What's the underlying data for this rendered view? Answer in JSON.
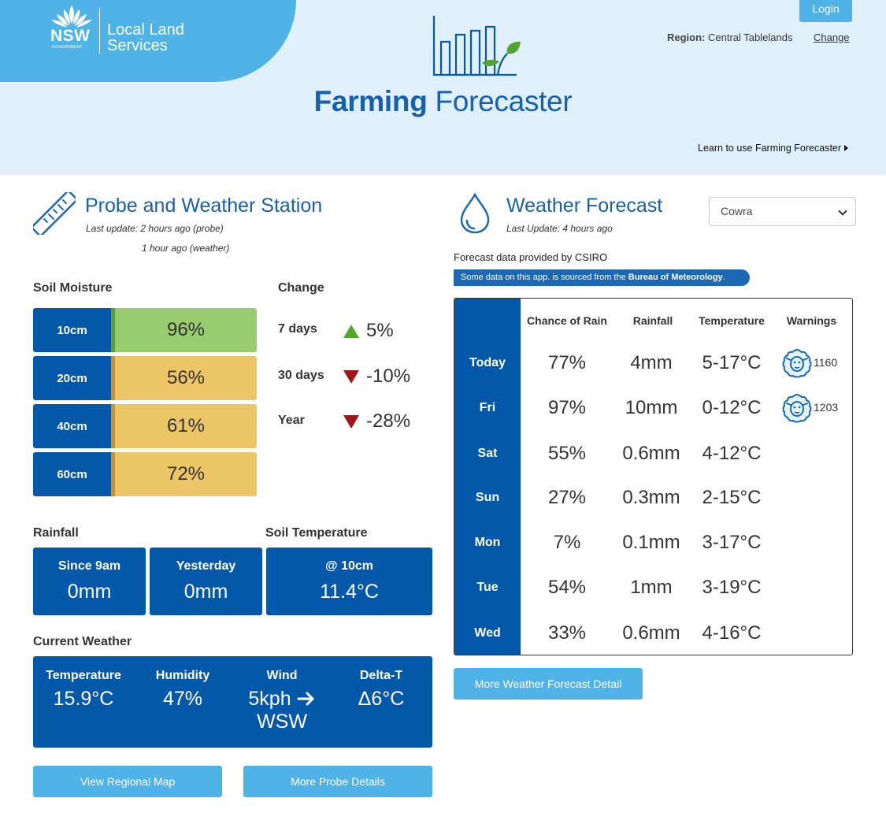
{
  "header": {
    "nsw_logo_text": "NSW",
    "nsw_logo_subtext": "GOVERNMENT",
    "org_line1": "Local Land",
    "org_line2": "Services",
    "app_title_bold": "Farming",
    "app_title_light": "Forecaster",
    "login_label": "Login",
    "region_label": "Region:",
    "region_value": "Central Tablelands",
    "change_label": "Change",
    "learn_label": "Learn to use Farming Forecaster"
  },
  "probe": {
    "title": "Probe and Weather Station",
    "last_update_probe": "Last update: 2 hours ago (probe)",
    "last_update_weather": "1 hour ago (weather)",
    "soil_moisture_heading": "Soil Moisture",
    "change_heading": "Change",
    "soil_moisture": [
      {
        "depth": "10cm",
        "value": "96%",
        "level": "green"
      },
      {
        "depth": "20cm",
        "value": "56%",
        "level": "orange"
      },
      {
        "depth": "40cm",
        "value": "61%",
        "level": "orange"
      },
      {
        "depth": "60cm",
        "value": "72%",
        "level": "orange"
      }
    ],
    "changes": [
      {
        "period": "7 days",
        "value": "5%",
        "direction": "up"
      },
      {
        "period": "30 days",
        "value": "-10%",
        "direction": "down"
      },
      {
        "period": "Year",
        "value": "-28%",
        "direction": "down"
      }
    ],
    "rainfall_heading": "Rainfall",
    "rainfall": [
      {
        "label": "Since 9am",
        "value": "0mm"
      },
      {
        "label": "Yesterday",
        "value": "0mm"
      }
    ],
    "soil_temp_heading": "Soil Temperature",
    "soil_temp": {
      "label": "@ 10cm",
      "value": "11.4°C"
    },
    "current_weather_heading": "Current Weather",
    "current_weather": [
      {
        "label": "Temperature",
        "value": "15.9°C"
      },
      {
        "label": "Humidity",
        "value": "47%"
      },
      {
        "label": "Wind",
        "value": "5kph",
        "value2": "WSW"
      },
      {
        "label": "Delta-T",
        "value": "Δ6°C"
      }
    ],
    "view_map_label": "View Regional Map",
    "more_probe_label": "More Probe Details"
  },
  "forecast": {
    "title": "Weather Forecast",
    "last_update": "Last Update: 4 hours ago",
    "location_selected": "Cowra",
    "provider_text": "Forecast data provided by CSIRO",
    "bom_text_prefix": "Some data on this app. is sourced from the",
    "bom_text_bold": "Bureau of Meteorology",
    "bom_text_suffix": ".",
    "columns": [
      "Chance of Rain",
      "Rainfall",
      "Temperature",
      "Warnings"
    ],
    "rows": [
      {
        "day": "Today",
        "chance": "77%",
        "rain": "4mm",
        "temp": "5-17°C",
        "warning": "1160"
      },
      {
        "day": "Fri",
        "chance": "97%",
        "rain": "10mm",
        "temp": "0-12°C",
        "warning": "1203"
      },
      {
        "day": "Sat",
        "chance": "55%",
        "rain": "0.6mm",
        "temp": "4-12°C",
        "warning": ""
      },
      {
        "day": "Sun",
        "chance": "27%",
        "rain": "0.3mm",
        "temp": "2-15°C",
        "warning": ""
      },
      {
        "day": "Mon",
        "chance": "7%",
        "rain": "0.1mm",
        "temp": "3-17°C",
        "warning": ""
      },
      {
        "day": "Tue",
        "chance": "54%",
        "rain": "1mm",
        "temp": "3-19°C",
        "warning": ""
      },
      {
        "day": "Wed",
        "chance": "33%",
        "rain": "0.6mm",
        "temp": "4-16°C",
        "warning": ""
      }
    ],
    "more_detail_label": "More Weather Forecast Detail"
  },
  "colors": {
    "primary_blue": "#0458aa",
    "title_blue": "#1660ad",
    "light_blue": "#4fb3e8",
    "header_bg": "#dff0fa",
    "moisture_green": "#98cc6f",
    "moisture_orange": "#ecc566",
    "change_up": "#53a532",
    "change_down": "#9f1717"
  },
  "icons": [
    "waratah-logo-icon",
    "bar-chart-leaf-icon",
    "ruler-icon",
    "water-drop-icon",
    "sheep-warning-icon",
    "arrow-right-icon"
  ]
}
